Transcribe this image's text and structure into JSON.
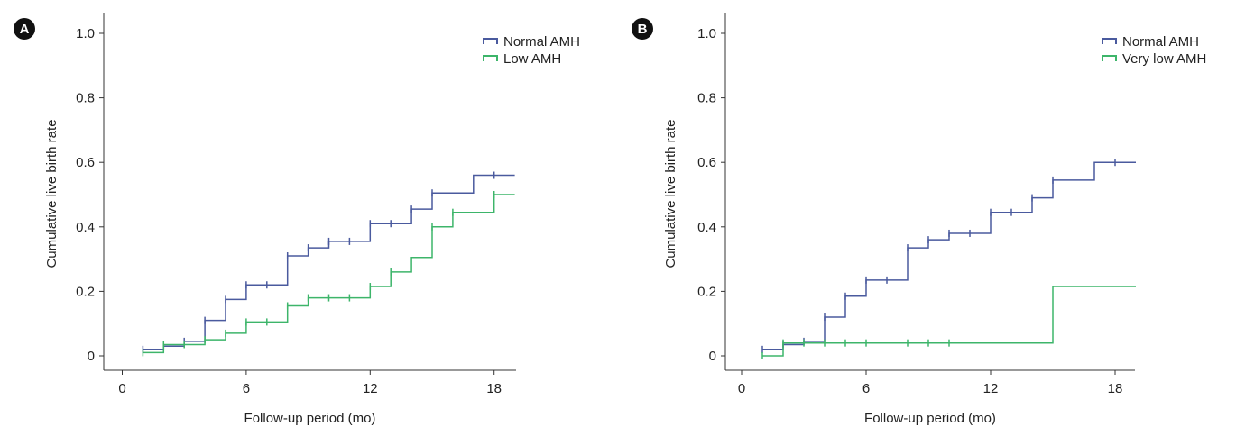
{
  "chart_data": [
    {
      "type": "line",
      "panel_label": "A",
      "xlabel": "Follow-up period (mo)",
      "ylabel": "Cumulative live birth rate",
      "xlim": [
        0,
        19
      ],
      "ylim": [
        0,
        1.0
      ],
      "xticks": [
        0,
        6,
        12,
        18
      ],
      "xtick_labels": [
        "0",
        "6",
        "12",
        "18"
      ],
      "yticks": [
        0,
        0.2,
        0.4,
        0.6,
        0.8,
        1.0
      ],
      "ytick_labels": [
        "0",
        "0.2",
        "0.4",
        "0.6",
        "0.8",
        "1.0"
      ],
      "step": true,
      "legend_position": "top-right",
      "series": [
        {
          "name": "Normal AMH",
          "color": "#4a5a9e",
          "x": [
            1,
            2,
            3,
            4,
            5,
            6,
            8,
            9,
            10,
            12,
            14,
            15,
            17,
            19
          ],
          "y": [
            0.02,
            0.03,
            0.045,
            0.11,
            0.175,
            0.22,
            0.31,
            0.335,
            0.355,
            0.41,
            0.455,
            0.505,
            0.56,
            0.56
          ],
          "censor_x": [
            1,
            3,
            4,
            5,
            6,
            7,
            8,
            9,
            10,
            11,
            12,
            13,
            14,
            15,
            18
          ],
          "censor_y": [
            0.02,
            0.045,
            0.11,
            0.175,
            0.22,
            0.22,
            0.31,
            0.335,
            0.355,
            0.355,
            0.41,
            0.41,
            0.455,
            0.505,
            0.56
          ]
        },
        {
          "name": "Low AMH",
          "color": "#3db56a",
          "x": [
            1,
            2,
            4,
            5,
            6,
            8,
            9,
            12,
            13,
            14,
            15,
            16,
            18,
            19
          ],
          "y": [
            0.01,
            0.035,
            0.05,
            0.07,
            0.105,
            0.155,
            0.18,
            0.215,
            0.26,
            0.305,
            0.4,
            0.445,
            0.5,
            0.5
          ],
          "censor_x": [
            1,
            2,
            3,
            4,
            5,
            6,
            7,
            8,
            9,
            10,
            11,
            12,
            13,
            15,
            16,
            18
          ],
          "censor_y": [
            0.01,
            0.035,
            0.035,
            0.05,
            0.07,
            0.105,
            0.105,
            0.155,
            0.18,
            0.18,
            0.18,
            0.215,
            0.26,
            0.4,
            0.445,
            0.5
          ]
        }
      ]
    },
    {
      "type": "line",
      "panel_label": "B",
      "xlabel": "Follow-up period (mo)",
      "ylabel": "Cumulative live birth rate",
      "xlim": [
        0,
        19
      ],
      "ylim": [
        0,
        1.0
      ],
      "xticks": [
        0,
        6,
        12,
        18
      ],
      "xtick_labels": [
        "0",
        "6",
        "12",
        "18"
      ],
      "yticks": [
        0,
        0.2,
        0.4,
        0.6,
        0.8,
        1.0
      ],
      "ytick_labels": [
        "0",
        "0.2",
        "0.4",
        "0.6",
        "0.8",
        "1.0"
      ],
      "step": true,
      "legend_position": "top-right",
      "series": [
        {
          "name": "Normal AMH",
          "color": "#4a5a9e",
          "x": [
            1,
            2,
            3,
            4,
            5,
            6,
            8,
            9,
            10,
            12,
            14,
            15,
            17,
            19
          ],
          "y": [
            0.02,
            0.035,
            0.045,
            0.12,
            0.185,
            0.235,
            0.335,
            0.36,
            0.38,
            0.445,
            0.49,
            0.545,
            0.6,
            0.6
          ],
          "censor_x": [
            1,
            2,
            3,
            4,
            5,
            6,
            7,
            8,
            9,
            10,
            11,
            12,
            13,
            14,
            15,
            18
          ],
          "censor_y": [
            0.02,
            0.035,
            0.045,
            0.12,
            0.185,
            0.235,
            0.235,
            0.335,
            0.36,
            0.38,
            0.38,
            0.445,
            0.445,
            0.49,
            0.545,
            0.6
          ]
        },
        {
          "name": "Very low AMH",
          "color": "#3db56a",
          "x": [
            1,
            2,
            15,
            19
          ],
          "y": [
            0.0,
            0.04,
            0.215,
            0.215
          ],
          "censor_x": [
            1,
            2,
            3,
            4,
            5,
            6,
            8,
            9,
            10
          ],
          "censor_y": [
            0.0,
            0.04,
            0.04,
            0.04,
            0.04,
            0.04,
            0.04,
            0.04,
            0.04
          ]
        }
      ]
    }
  ]
}
